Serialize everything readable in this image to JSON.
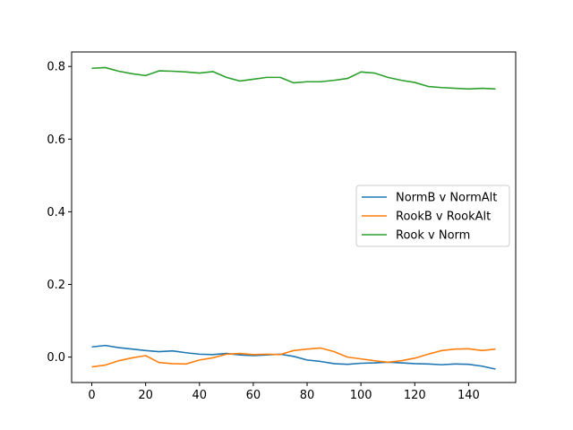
{
  "chart_data": {
    "type": "line",
    "title": "",
    "xlabel": "",
    "ylabel": "",
    "xlim": [
      -7.5,
      157.5
    ],
    "ylim": [
      -0.07,
      0.84
    ],
    "xticks": [
      0,
      20,
      40,
      60,
      80,
      100,
      120,
      140
    ],
    "yticks": [
      0.0,
      0.2,
      0.4,
      0.6,
      0.8
    ],
    "ytick_labels": [
      "0.0",
      "0.2",
      "0.4",
      "0.6",
      "0.8"
    ],
    "grid": false,
    "legend_position": "center-right",
    "x": [
      0,
      5,
      10,
      15,
      20,
      25,
      30,
      35,
      40,
      45,
      50,
      55,
      60,
      65,
      70,
      75,
      80,
      85,
      90,
      95,
      100,
      105,
      110,
      115,
      120,
      125,
      130,
      135,
      140,
      145,
      150
    ],
    "series": [
      {
        "name": "NormB v NormAlt",
        "color": "#1f77b4",
        "values": [
          0.028,
          0.032,
          0.026,
          0.022,
          0.018,
          0.015,
          0.017,
          0.012,
          0.008,
          0.007,
          0.01,
          0.006,
          0.004,
          0.006,
          0.008,
          0.002,
          -0.008,
          -0.012,
          -0.018,
          -0.02,
          -0.017,
          -0.016,
          -0.014,
          -0.016,
          -0.018,
          -0.019,
          -0.021,
          -0.019,
          -0.02,
          -0.025,
          -0.033
        ]
      },
      {
        "name": "RookB v RookAlt",
        "color": "#ff7f0e",
        "values": [
          -0.027,
          -0.022,
          -0.01,
          -0.002,
          0.004,
          -0.015,
          -0.018,
          -0.019,
          -0.008,
          -0.002,
          0.008,
          0.01,
          0.007,
          0.008,
          0.007,
          0.018,
          0.022,
          0.025,
          0.015,
          0.0,
          -0.005,
          -0.01,
          -0.014,
          -0.01,
          -0.003,
          0.008,
          0.018,
          0.022,
          0.023,
          0.018,
          0.022
        ]
      },
      {
        "name": "Rook v Norm",
        "color": "#2ca02c",
        "values": [
          0.795,
          0.797,
          0.787,
          0.78,
          0.775,
          0.788,
          0.787,
          0.785,
          0.782,
          0.786,
          0.77,
          0.76,
          0.765,
          0.77,
          0.77,
          0.755,
          0.758,
          0.758,
          0.762,
          0.767,
          0.785,
          0.782,
          0.77,
          0.762,
          0.756,
          0.745,
          0.742,
          0.74,
          0.738,
          0.74,
          0.738
        ]
      }
    ]
  }
}
